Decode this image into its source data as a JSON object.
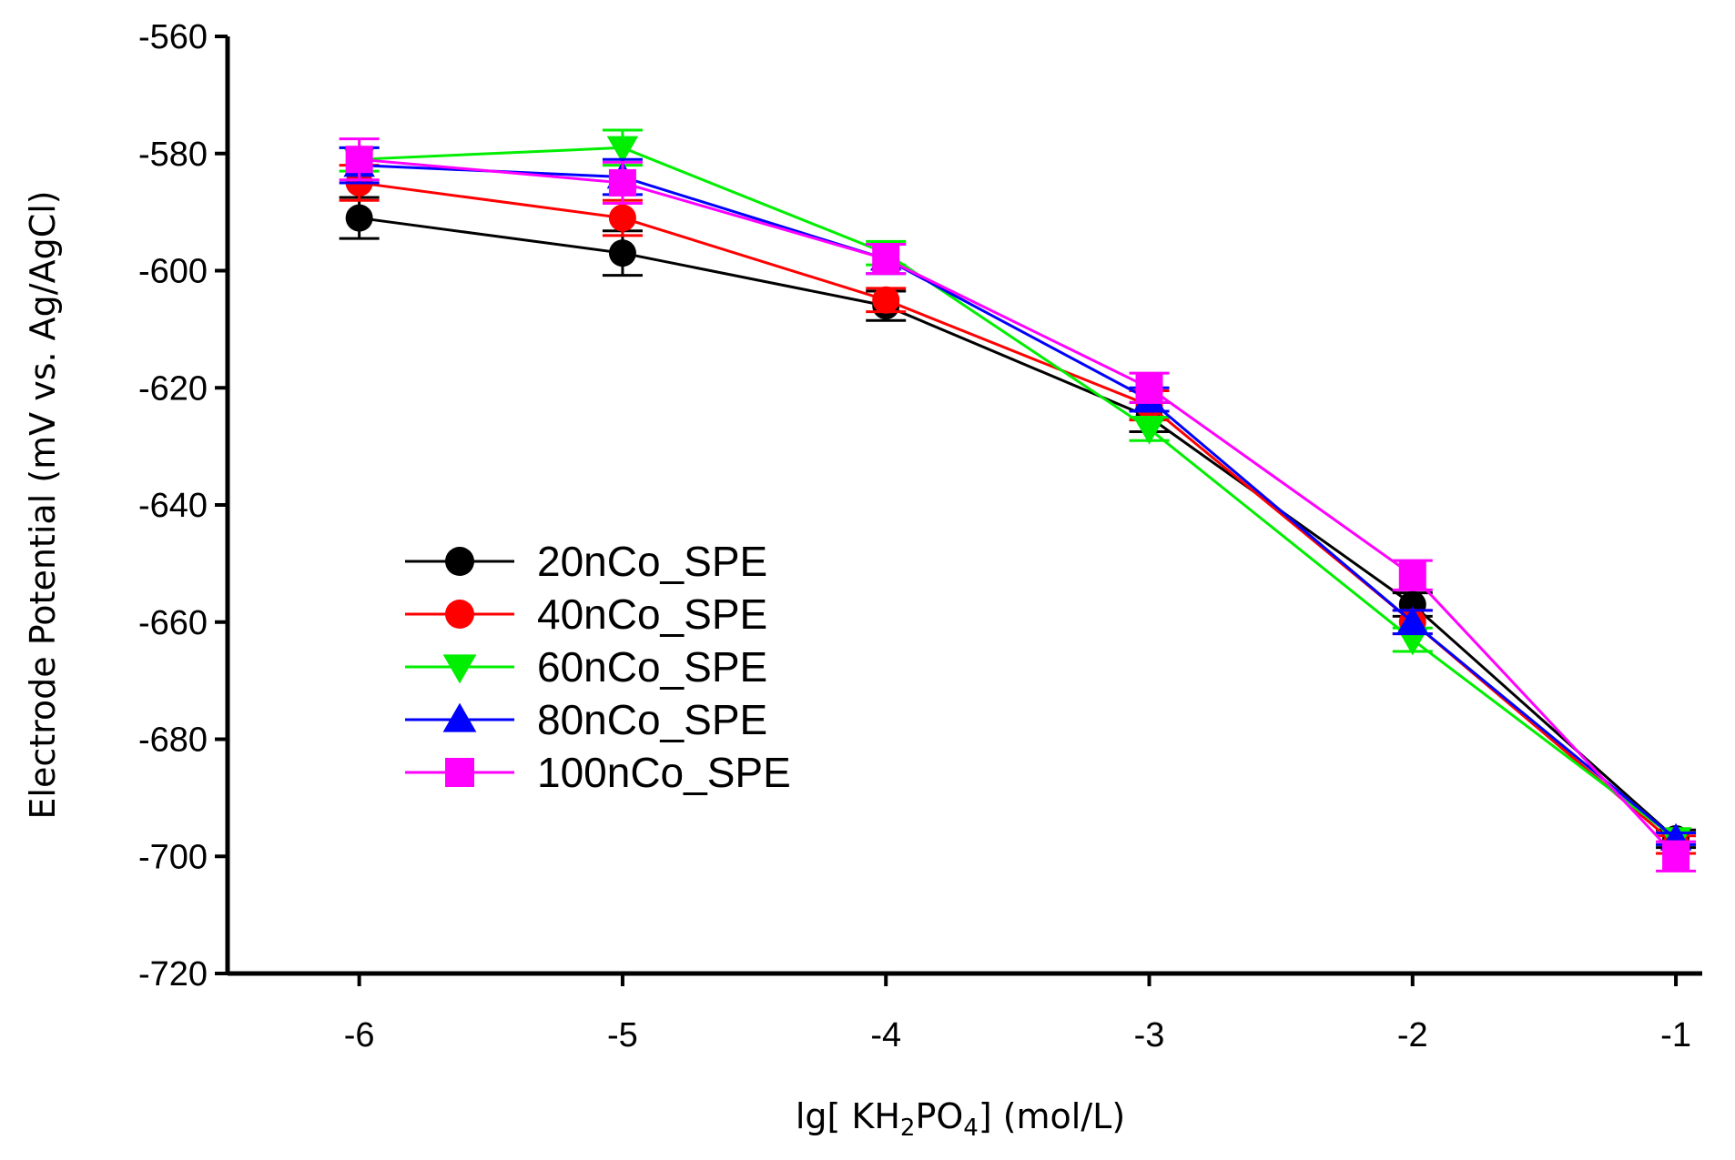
{
  "chart_data": {
    "type": "line",
    "title": "",
    "xlabel": {
      "prefix": "lg[ KH",
      "sub1": "2",
      "mid": "PO",
      "sub2": "4",
      "suffix": "] (mol/L)"
    },
    "ylabel": "Electrode Potential (mV vs. Ag/AgCl)",
    "xlim": [
      -6.5,
      -0.9
    ],
    "ylim": [
      -720,
      -560
    ],
    "x": [
      -6,
      -5,
      -4,
      -3,
      -2,
      -1
    ],
    "x_tick_labels": [
      "-6",
      "-5",
      "-4",
      "-3",
      "-2",
      "-1"
    ],
    "y_ticks": [
      -560,
      -580,
      -600,
      -620,
      -640,
      -660,
      -680,
      -700,
      -720
    ],
    "y_tick_labels": [
      "-560",
      "-580",
      "-600",
      "-620",
      "-640",
      "-660",
      "-680",
      "-700",
      "-720"
    ],
    "grid": false,
    "legend_position": "center-left",
    "series": [
      {
        "name": "20nCo_SPE",
        "color": "#000000",
        "marker": "circle",
        "values": [
          -591,
          -597,
          -606,
          -625,
          -657,
          -697
        ],
        "errors": [
          3.5,
          3.8,
          2.5,
          2.5,
          2,
          1.5
        ]
      },
      {
        "name": "40nCo_SPE",
        "color": "#ff0000",
        "marker": "circle",
        "values": [
          -585,
          -591,
          -605,
          -623,
          -660,
          -698
        ],
        "errors": [
          3,
          3,
          2,
          2.5,
          2,
          1.5
        ]
      },
      {
        "name": "60nCo_SPE",
        "color": "#00ee00",
        "marker": "triangle-down",
        "values": [
          -581,
          -579,
          -597,
          -627,
          -663,
          -697
        ],
        "errors": [
          2,
          3,
          2,
          2,
          2,
          1
        ]
      },
      {
        "name": "80nCo_SPE",
        "color": "#0000ff",
        "marker": "triangle-up",
        "values": [
          -582,
          -584,
          -598,
          -622,
          -660,
          -697
        ],
        "errors": [
          3,
          3,
          2.5,
          2,
          2,
          1
        ]
      },
      {
        "name": "100nCo_SPE",
        "color": "#ff00ff",
        "marker": "square",
        "values": [
          -581,
          -585,
          -598,
          -620,
          -652,
          -700
        ],
        "errors": [
          3.5,
          3.5,
          2.5,
          2.5,
          2.5,
          2.5
        ]
      }
    ]
  }
}
